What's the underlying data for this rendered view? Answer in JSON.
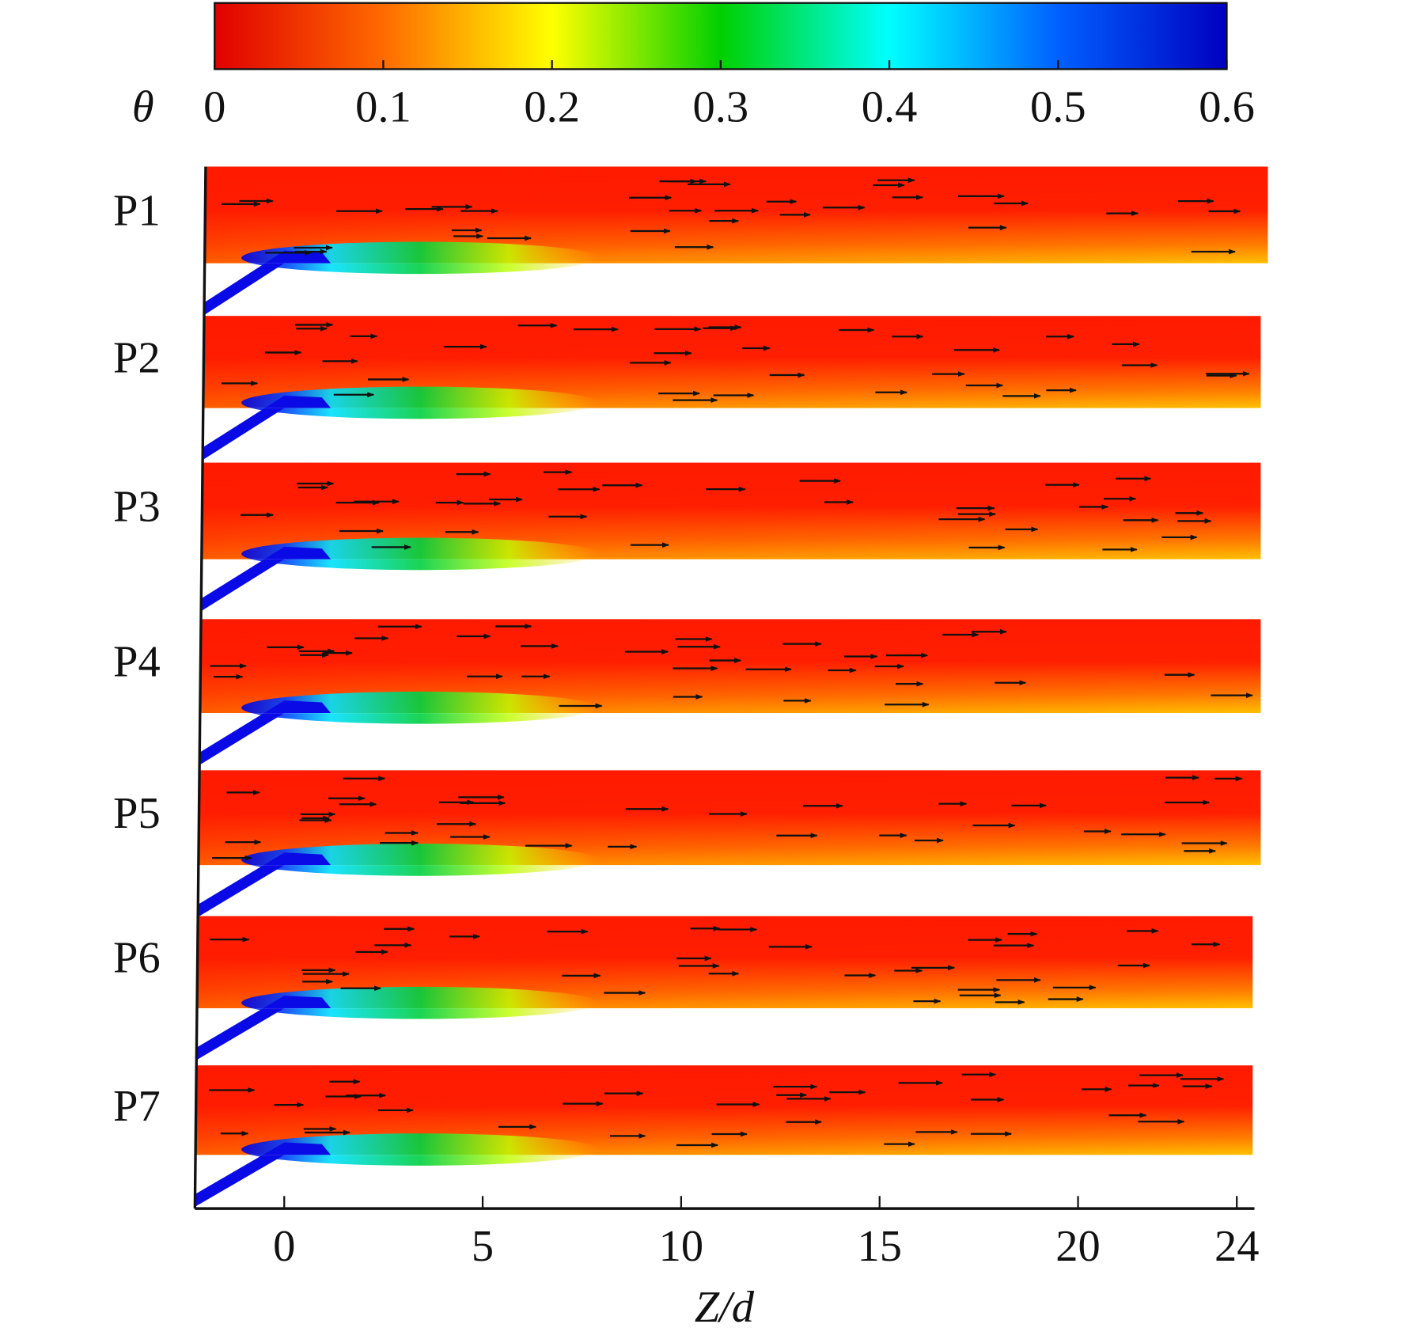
{
  "chart_data": {
    "type": "contour",
    "colorbar": {
      "label": "θ",
      "lim": [
        0,
        0.6
      ],
      "ticks": [
        0,
        0.1,
        0.2,
        0.3,
        0.4,
        0.5,
        0.6
      ],
      "colormap": [
        "#e00000",
        "#ff6a00",
        "#ffff00",
        "#00d000",
        "#00ffff",
        "#0060ff",
        "#0000c0"
      ]
    },
    "panels": [
      "P1",
      "P2",
      "P3",
      "P4",
      "P5",
      "P6",
      "P7"
    ],
    "xlabel": "Z/d",
    "xlim": [
      -2.25,
      24.4
    ],
    "xticks": [
      0,
      5,
      10,
      15,
      20,
      24
    ]
  }
}
